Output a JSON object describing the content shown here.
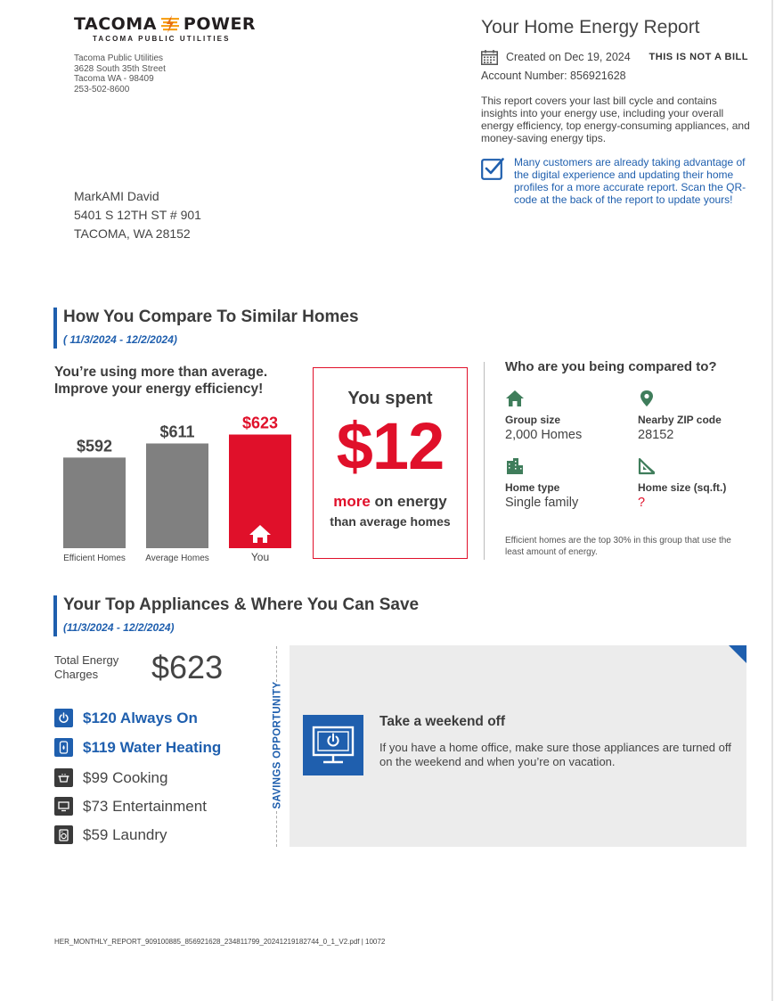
{
  "logo": {
    "left_word": "TACOMA",
    "right_word": "POWER",
    "subtitle": "TACOMA PUBLIC UTILITIES"
  },
  "utility": {
    "name": "Tacoma Public Utilities",
    "street": "3628 South 35th Street",
    "city": "Tacoma WA - 98409",
    "phone": "253-502-8600"
  },
  "customer": {
    "name": "MarkAMI David",
    "street": "5401 S 12TH ST # 901",
    "city": "TACOMA, WA 28152"
  },
  "header": {
    "title": "Your Home Energy Report",
    "created": "Created on Dec 19, 2024",
    "not_bill": "THIS IS NOT A BILL",
    "account": "Account Number: 856921628",
    "description": "This report covers your last bill cycle and contains insights into your energy use, including your overall energy efficiency, top energy-consuming appliances, and money-saving energy tips.",
    "digital_note": "Many customers are already taking advantage of the digital experience and updating their home profiles for a more accurate report. Scan the QR-code at the back of the report to update yours!"
  },
  "compare": {
    "title": "How You Compare To Similar Homes",
    "dates": "( 11/3/2024 - 12/2/2024)",
    "message_line1": "You’re using more than average.",
    "message_line2": "Improve your energy efficiency!",
    "spent_label": "You spent",
    "spent_amount": "$12",
    "spent_more_word": "more",
    "spent_more_rest": " on energy",
    "spent_than": "than average homes"
  },
  "chart_data": {
    "type": "bar",
    "categories": [
      "Efficient Homes",
      "Average Homes",
      "You"
    ],
    "values": [
      592,
      611,
      623
    ],
    "value_labels": [
      "$592",
      "$611",
      "$623"
    ],
    "colors": [
      "#808080",
      "#808080",
      "#e0102a"
    ]
  },
  "who": {
    "title": "Who are you being compared to?",
    "group_label": "Group size",
    "group_value": "2,000 Homes",
    "zip_label": "Nearby ZIP code",
    "zip_value": "28152",
    "type_label": "Home type",
    "type_value": "Single family",
    "size_label": "Home size (sq.ft.)",
    "size_value": "?",
    "footnote": "Efficient homes are the top 30% in this group that use the least amount of energy."
  },
  "appliances": {
    "title": "Your Top Appliances & Where You Can Save",
    "dates": "(11/3/2024 - 12/2/2024)",
    "total_label_line1": "Total Energy",
    "total_label_line2": "Charges",
    "total_amount": "$623",
    "items": [
      {
        "label": "$120 Always On",
        "icon": "power-icon",
        "highlight": true
      },
      {
        "label": "$119 Water Heating",
        "icon": "water-heater-icon",
        "highlight": true
      },
      {
        "label": "$99 Cooking",
        "icon": "cooking-pot-icon",
        "highlight": false
      },
      {
        "label": "$73 Entertainment",
        "icon": "tv-icon",
        "highlight": false
      },
      {
        "label": "$59 Laundry",
        "icon": "washer-icon",
        "highlight": false
      }
    ],
    "savings_label": "SAVINGS OPPORTUNITY",
    "tip_title": "Take a weekend off",
    "tip_body": "If you have a home office, make sure those appliances are turned off on the weekend and when you’re on vacation."
  },
  "colors": {
    "accent_blue": "#1f5fae",
    "alert_red": "#e0102a",
    "bar_gray": "#808080",
    "icon_green": "#3f7d5b"
  },
  "footer": "HER_MONTHLY_REPORT_909100885_856921628_234811799_20241219182744_0_1_V2.pdf | 10072"
}
